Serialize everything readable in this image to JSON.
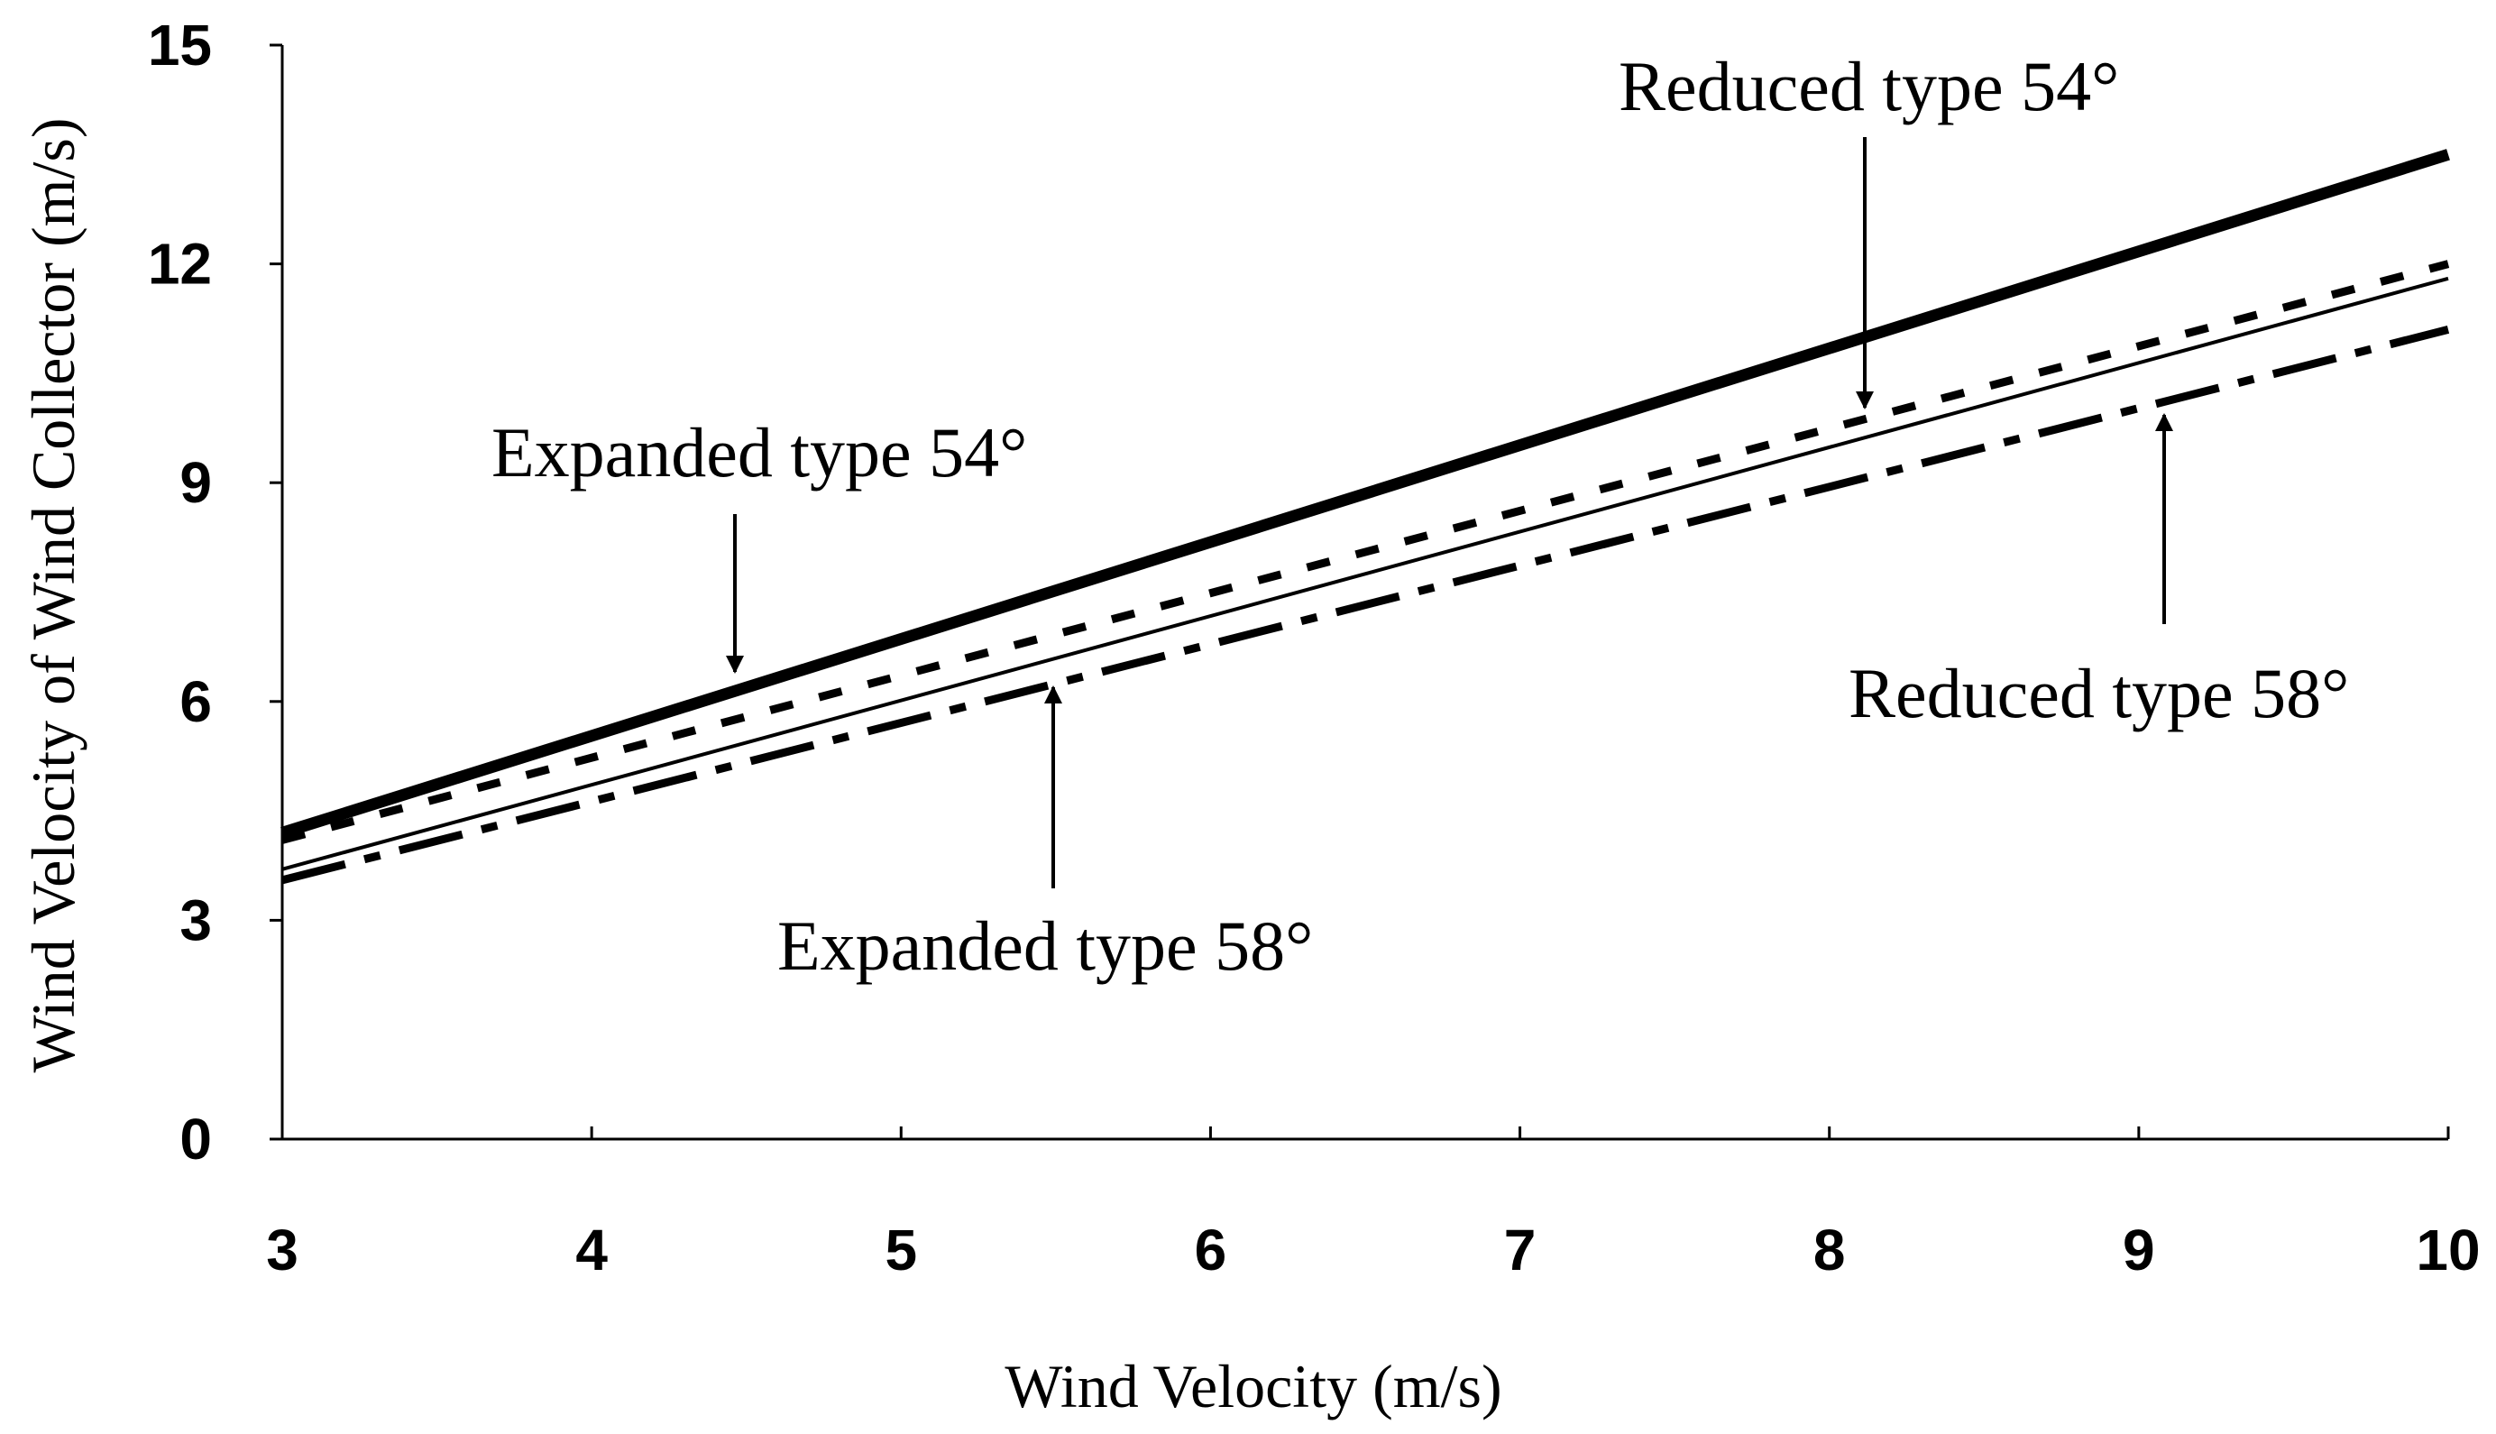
{
  "chart_data": {
    "type": "line",
    "title": "",
    "xlabel": "Wind Velocity (m/s)",
    "ylabel": "Wind Velocity of Wind Collector (m/s)",
    "xlim": [
      3,
      10
    ],
    "ylim": [
      0,
      15
    ],
    "x_ticks": [
      "3",
      "4",
      "5",
      "6",
      "7",
      "8",
      "9",
      "10"
    ],
    "y_ticks": [
      "0",
      "3",
      "6",
      "9",
      "12",
      "15"
    ],
    "x": [
      3,
      10
    ],
    "series": [
      {
        "name": "Expanded type 54°",
        "values": [
          4.2,
          13.5
        ],
        "style": "thick-solid"
      },
      {
        "name": "Reduced type 54°",
        "values": [
          4.1,
          12.0
        ],
        "style": "short-dash"
      },
      {
        "name": "Expanded type 58°",
        "values": [
          3.7,
          11.8
        ],
        "style": "thin-solid"
      },
      {
        "name": "Reduced type 58°",
        "values": [
          3.55,
          11.1
        ],
        "style": "long-dash"
      }
    ],
    "annotations": [
      {
        "text": "Expanded type 54°",
        "series": "Expanded type 54°",
        "arrow": "down",
        "at_x": 4.45
      },
      {
        "text": "Reduced type 54°",
        "series": "Reduced type 54°",
        "arrow": "down",
        "at_x": 8.1
      },
      {
        "text": "Expanded type 58°",
        "series": "Expanded type 58°",
        "arrow": "up",
        "at_x": 5.5
      },
      {
        "text": "Reduced type 58°",
        "series": "Reduced type 58°",
        "arrow": "up",
        "at_x": 9.1
      }
    ],
    "grid": false,
    "legend": "none"
  },
  "colors": {
    "line": "#000000",
    "background": "#ffffff"
  }
}
